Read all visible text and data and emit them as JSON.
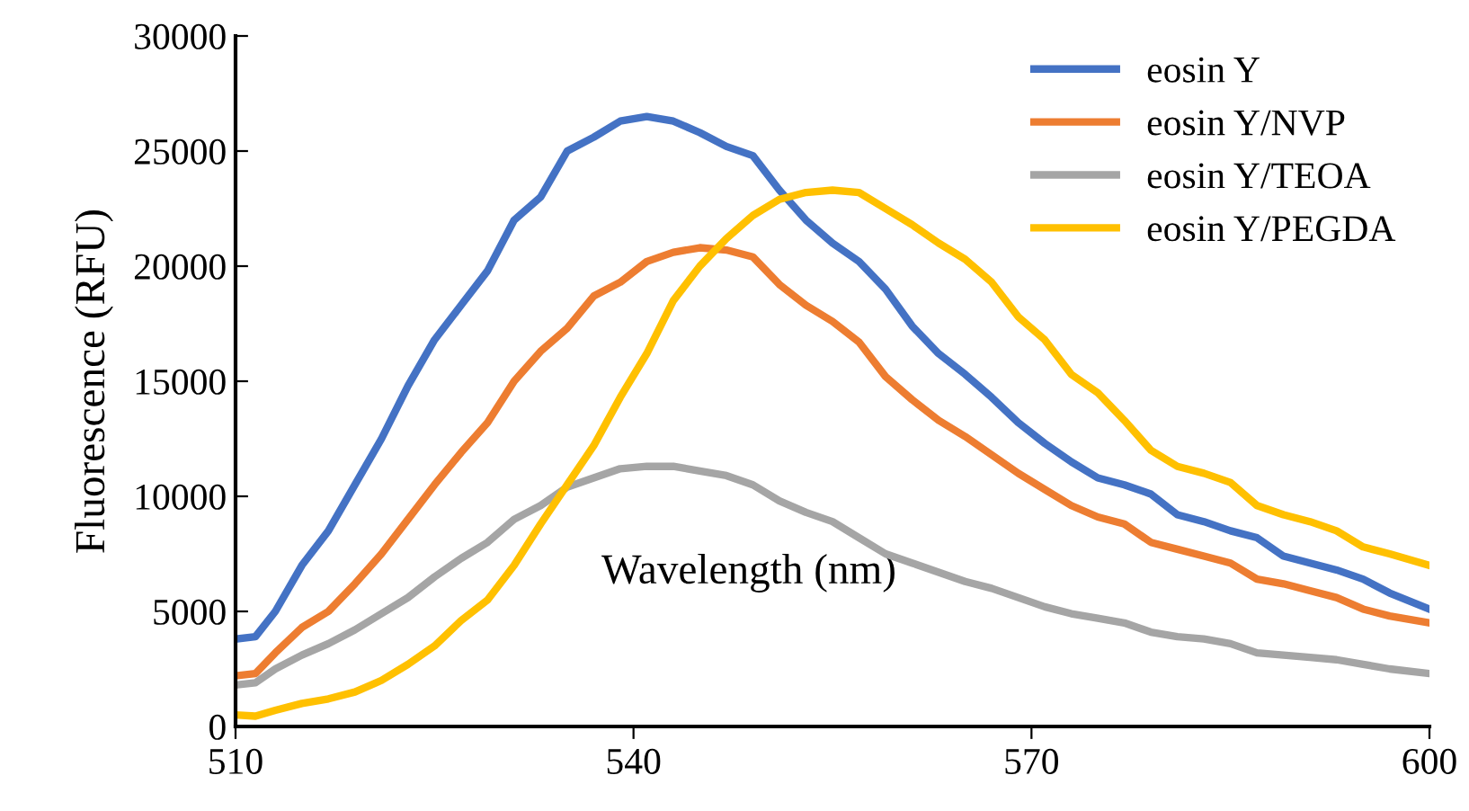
{
  "chart_data": {
    "type": "line",
    "xlabel": "Wavelength (nm)",
    "ylabel": "Fluorescence (RFU)",
    "x": [
      510,
      511.5,
      513,
      515,
      517,
      519,
      521,
      523,
      525,
      527,
      529,
      531,
      533,
      535,
      537,
      539,
      541,
      543,
      545,
      547,
      549,
      551,
      553,
      555,
      557,
      559,
      561,
      563,
      565,
      567,
      569,
      571,
      573,
      575,
      577,
      579,
      581,
      583,
      585,
      587,
      589,
      591,
      593,
      595,
      597,
      600
    ],
    "series": [
      {
        "name": "eosin Y",
        "color": "#4472c4",
        "values": [
          3800,
          3900,
          5000,
          7000,
          8500,
          10500,
          12500,
          14800,
          16800,
          18300,
          19800,
          22000,
          23000,
          25000,
          25600,
          26300,
          26500,
          26300,
          25800,
          25200,
          24800,
          23300,
          22000,
          21000,
          20200,
          19000,
          17400,
          16200,
          15300,
          14300,
          13200,
          12300,
          11500,
          10800,
          10500,
          10100,
          9200,
          8900,
          8500,
          8200,
          7400,
          7100,
          6800,
          6400,
          5800,
          5100
        ]
      },
      {
        "name": "eosin Y/NVP",
        "color": "#ed7d31",
        "values": [
          2200,
          2300,
          3200,
          4300,
          5000,
          6200,
          7500,
          9000,
          10500,
          11900,
          13200,
          15000,
          16300,
          17300,
          18700,
          19300,
          20200,
          20600,
          20800,
          20700,
          20400,
          19200,
          18300,
          17600,
          16700,
          15200,
          14200,
          13300,
          12600,
          11800,
          11000,
          10300,
          9600,
          9100,
          8800,
          8000,
          7700,
          7400,
          7100,
          6400,
          6200,
          5900,
          5600,
          5100,
          4800,
          4500
        ]
      },
      {
        "name": "eosin Y/TEOA",
        "color": "#a5a5a5",
        "values": [
          1800,
          1900,
          2500,
          3100,
          3600,
          4200,
          4900,
          5600,
          6500,
          7300,
          8000,
          9000,
          9600,
          10400,
          10800,
          11200,
          11300,
          11300,
          11100,
          10900,
          10500,
          9800,
          9300,
          8900,
          8200,
          7500,
          7100,
          6700,
          6300,
          6000,
          5600,
          5200,
          4900,
          4700,
          4500,
          4100,
          3900,
          3800,
          3600,
          3200,
          3100,
          3000,
          2900,
          2700,
          2500,
          2300
        ]
      },
      {
        "name": "eosin Y/PEGDA",
        "color": "#ffc000",
        "values": [
          500,
          450,
          700,
          1000,
          1200,
          1500,
          2000,
          2700,
          3500,
          4600,
          5500,
          7000,
          8800,
          10500,
          12200,
          14300,
          16200,
          18500,
          20000,
          21200,
          22200,
          22900,
          23200,
          23300,
          23200,
          22500,
          21800,
          21000,
          20300,
          19300,
          17800,
          16800,
          15300,
          14500,
          13300,
          12000,
          11300,
          11000,
          10600,
          9600,
          9200,
          8900,
          8500,
          7800,
          7500,
          7000
        ]
      }
    ],
    "xlim": [
      510,
      600
    ],
    "xticks": [
      510,
      540,
      570,
      600
    ],
    "ylim": [
      0,
      30000
    ],
    "yticks": [
      0,
      5000,
      10000,
      15000,
      20000,
      25000,
      30000
    ],
    "legend": "top right",
    "grid": false,
    "marker": "none",
    "line_style": "solid"
  }
}
